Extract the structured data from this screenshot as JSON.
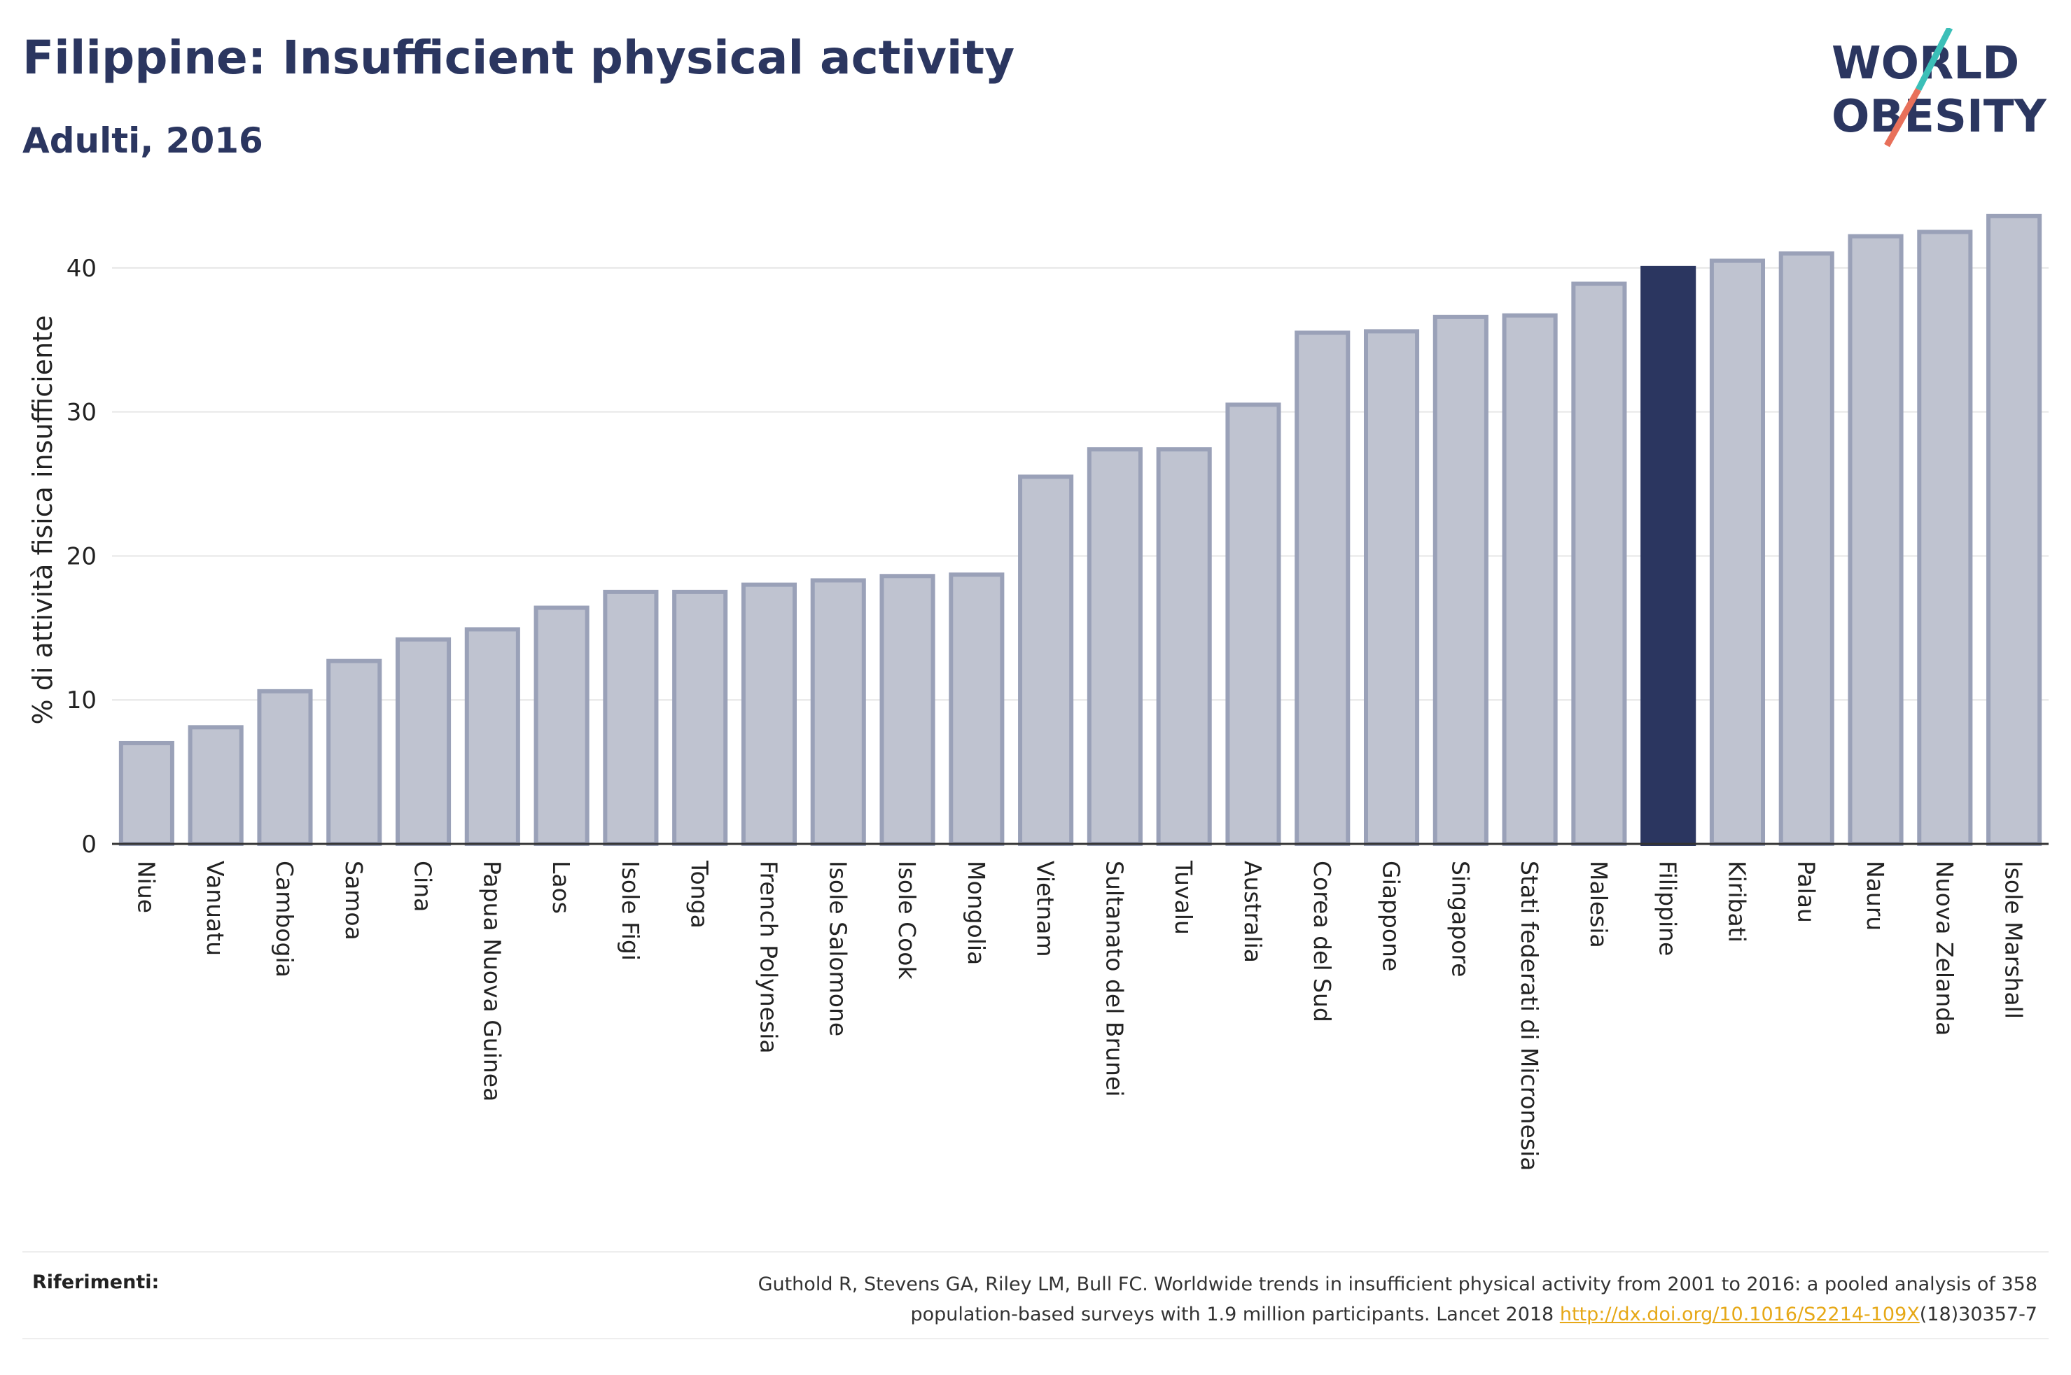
{
  "header": {
    "title": "Filippine: Insufficient physical activity",
    "subtitle": "Adulti, 2016"
  },
  "logo": {
    "line1": "WORLD",
    "line2": "OBESITY",
    "accent_teal": "#3bbfb8",
    "accent_red": "#e8705a"
  },
  "chart_data": {
    "type": "bar",
    "ylabel": "% di attività fisica insufficiente",
    "xlabel": "",
    "ylim": [
      0,
      45
    ],
    "yticks": [
      0,
      10,
      20,
      30,
      40
    ],
    "grid": true,
    "highlight": "Filippine",
    "colors": {
      "highlight": "#2b3660",
      "default": "#bfc3d0",
      "default_border": "#9aa1b8"
    },
    "categories": [
      "Niue",
      "Vanuatu",
      "Cambogia",
      "Samoa",
      "Cina",
      "Papua Nuova Guinea",
      "Laos",
      "Isole Figi",
      "Tonga",
      "French Polynesia",
      "Isole Salomone",
      "Isole Cook",
      "Mongolia",
      "Vietnam",
      "Sultanato del Brunei",
      "Tuvalu",
      "Australia",
      "Corea del Sud",
      "Giappone",
      "Singapore",
      "Stati federati di Micronesia",
      "Malesia",
      "Filippine",
      "Kiribati",
      "Palau",
      "Nauru",
      "Nuova Zelanda",
      "Isole Marshall"
    ],
    "values": [
      7.0,
      8.1,
      10.6,
      12.7,
      14.2,
      14.9,
      16.4,
      17.5,
      17.5,
      18.0,
      18.3,
      18.6,
      18.7,
      25.5,
      27.4,
      27.4,
      30.5,
      35.5,
      35.6,
      36.6,
      36.7,
      38.9,
      40.0,
      40.5,
      41.0,
      42.2,
      42.5,
      43.6
    ]
  },
  "references": {
    "label": "Riferimenti:",
    "line1": "Guthold R, Stevens GA, Riley LM, Bull FC. Worldwide trends in insufficient physical activity from 2001 to 2016: a pooled analysis of 358",
    "line2_pre": "population-based surveys with 1.9 million participants. Lancet 2018 ",
    "link": "http://dx.doi.org/10.1016/S2214-109X",
    "line2_post": "(18)30357-7"
  }
}
